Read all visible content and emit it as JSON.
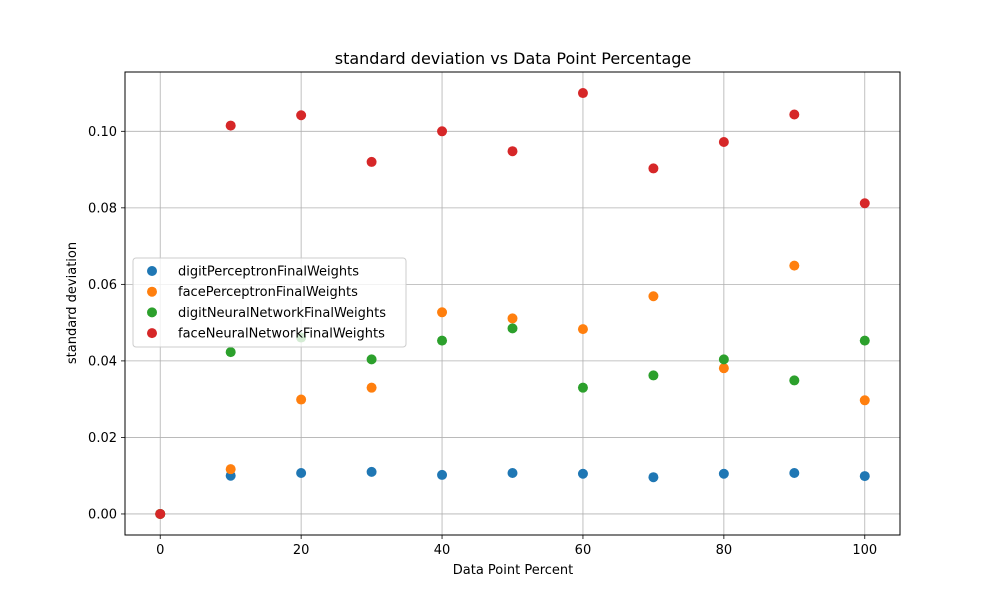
{
  "chart_data": {
    "type": "scatter",
    "title": "standard deviation vs Data Point Percentage",
    "xlabel": "Data Point Percent",
    "ylabel": "standard deviation",
    "xlim": [
      -5,
      105
    ],
    "ylim": [
      -0.0055,
      0.1155
    ],
    "xticks": [
      0,
      20,
      40,
      60,
      80,
      100
    ],
    "yticks": [
      0.0,
      0.02,
      0.04,
      0.06,
      0.08,
      0.1
    ],
    "ytick_labels": [
      "0.00",
      "0.02",
      "0.04",
      "0.06",
      "0.08",
      "0.10"
    ],
    "grid": true,
    "legend_position": "center-left",
    "x": [
      0,
      10,
      20,
      30,
      40,
      50,
      60,
      70,
      80,
      90,
      100
    ],
    "series": [
      {
        "name": "digitPerceptronFinalWeights",
        "color": "#1f77b4",
        "values": [
          0.0,
          0.01,
          0.0107,
          0.011,
          0.0102,
          0.0107,
          0.0105,
          0.0096,
          0.0105,
          0.0107,
          0.0099
        ]
      },
      {
        "name": "facePerceptronFinalWeights",
        "color": "#ff7f0e",
        "values": [
          0.0,
          0.0117,
          0.0299,
          0.033,
          0.0527,
          0.0511,
          0.0483,
          0.0569,
          0.0381,
          0.0649,
          0.0297
        ]
      },
      {
        "name": "digitNeuralNetworkFinalWeights",
        "color": "#2ca02c",
        "values": [
          0.0,
          0.0423,
          0.0461,
          0.0404,
          0.0453,
          0.0485,
          0.033,
          0.0362,
          0.0404,
          0.0349,
          0.0453
        ]
      },
      {
        "name": "faceNeuralNetworkFinalWeights",
        "color": "#d62728",
        "values": [
          0.0,
          0.1015,
          0.1042,
          0.092,
          0.1,
          0.0948,
          0.11,
          0.0903,
          0.0972,
          0.1044,
          0.0812
        ]
      }
    ]
  }
}
